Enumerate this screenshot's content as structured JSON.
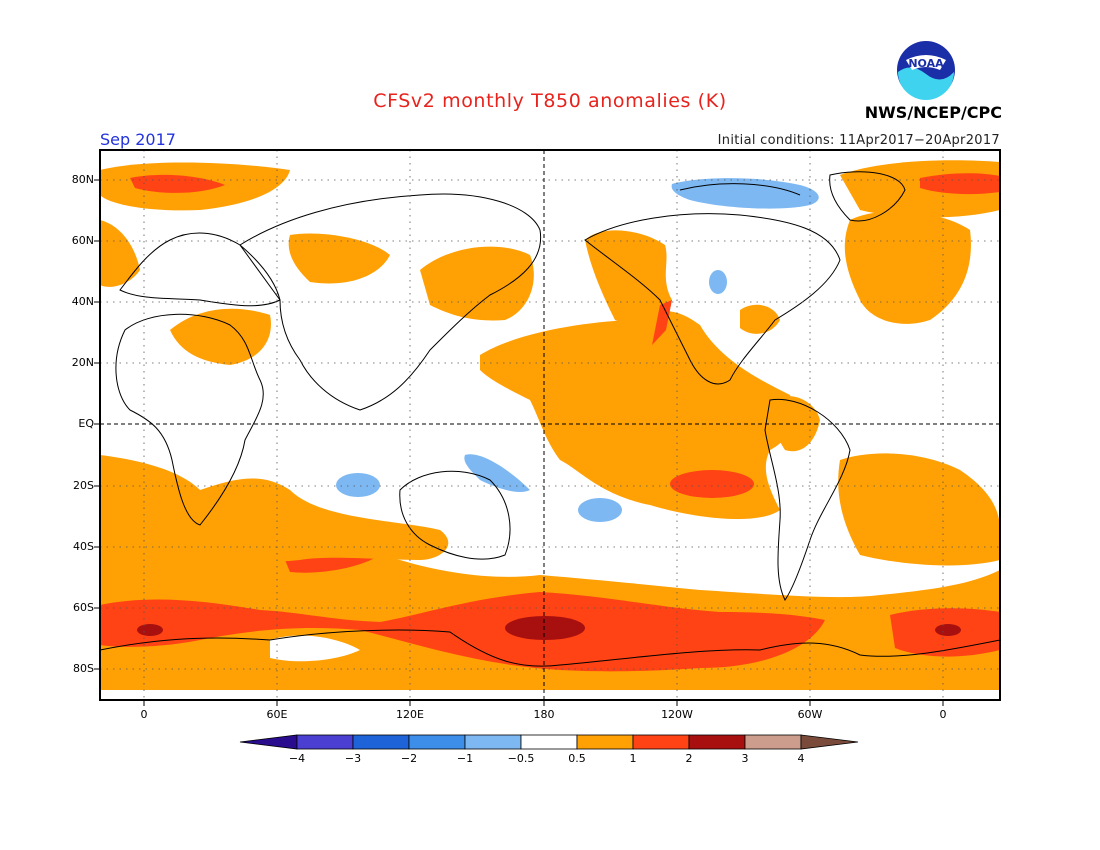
{
  "title": "CFSv2 monthly T850 anomalies (K)",
  "valid_month": "Sep 2017",
  "initial_conditions": "Initial conditions: 11Apr2017−20Apr2017",
  "agency": "NWS/NCEP/CPC",
  "logo_text": "NOAA",
  "lat_labels": [
    "80N",
    "60N",
    "40N",
    "20N",
    "EQ",
    "20S",
    "40S",
    "60S",
    "80S"
  ],
  "lon_labels": [
    "0",
    "60E",
    "120E",
    "180",
    "120W",
    "60W",
    "0"
  ],
  "colorbar": {
    "labels": [
      "−4",
      "−3",
      "−2",
      "−1",
      "−0.5",
      "0.5",
      "1",
      "2",
      "3",
      "4"
    ],
    "colors": [
      "#2a0d8e",
      "#4a3fd0",
      "#1e64d8",
      "#3c8ee8",
      "#7db8f2",
      "#ffffff",
      "#ffa005",
      "#ff4314",
      "#a80f0f",
      "#cc9c8c",
      "#7a4a3a"
    ]
  }
}
